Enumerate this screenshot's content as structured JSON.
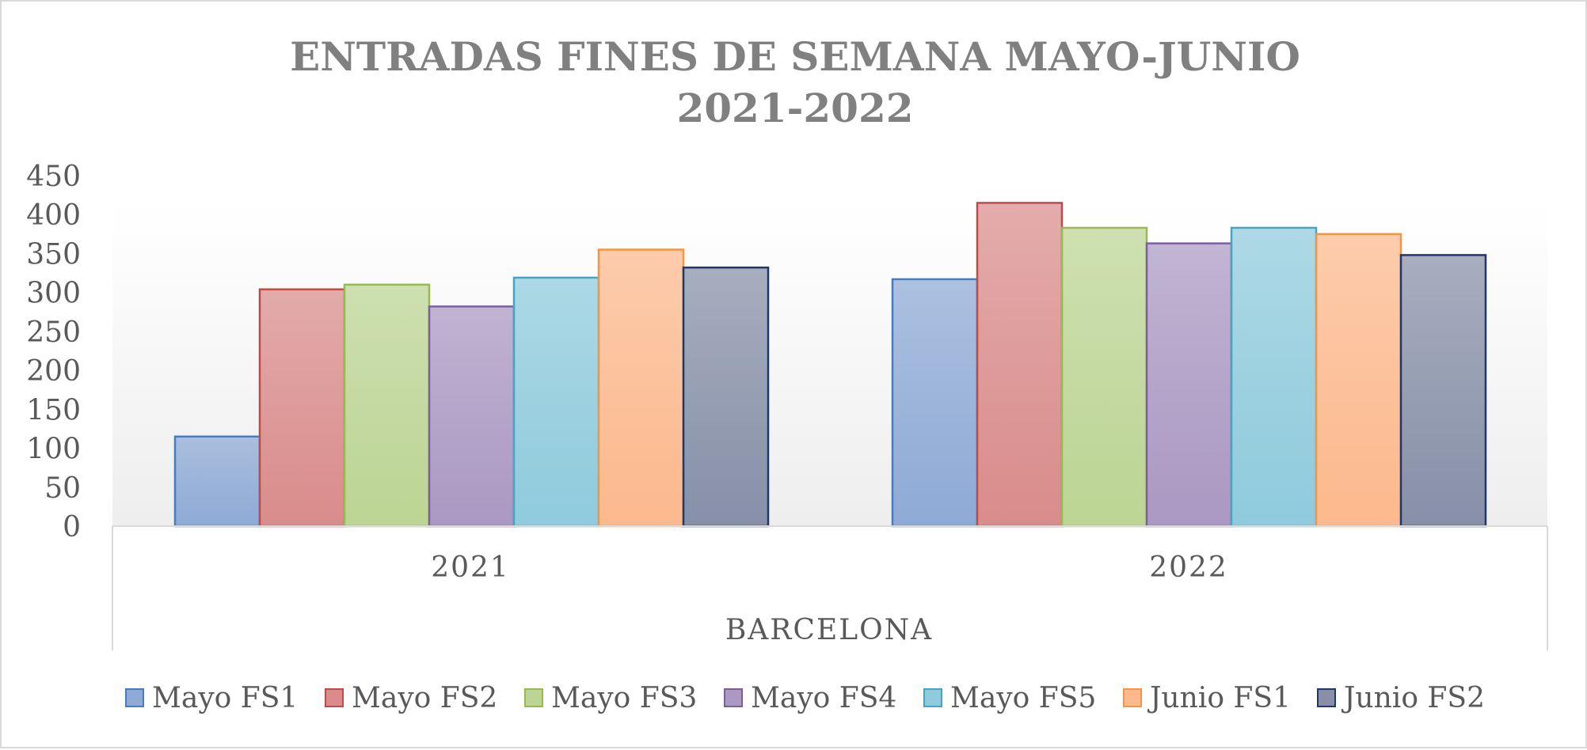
{
  "chart_data": {
    "type": "bar",
    "title_lines": [
      "ENTRADAS FINES DE SEMANA MAYO-JUNIO",
      "2021-2022"
    ],
    "categories": [
      "2021",
      "2022"
    ],
    "group_label": "BARCELONA",
    "y_ticks": [
      "0",
      "50",
      "100",
      "150",
      "200",
      "250",
      "300",
      "350",
      "400",
      "450"
    ],
    "ylim": [
      0,
      450
    ],
    "grid": false,
    "legend_position": "bottom",
    "series": [
      {
        "name": "Mayo FS1",
        "values": [
          115,
          317
        ],
        "color": "#8eaad6",
        "stroke": "#4a7bbd"
      },
      {
        "name": "Mayo FS2",
        "values": [
          304,
          415
        ],
        "color": "#da8c8c",
        "stroke": "#be4b48"
      },
      {
        "name": "Mayo FS3",
        "values": [
          310,
          383
        ],
        "color": "#bcd594",
        "stroke": "#98b954"
      },
      {
        "name": "Mayo FS4",
        "values": [
          282,
          363
        ],
        "color": "#ab98c3",
        "stroke": "#7d5fa0"
      },
      {
        "name": "Mayo FS5",
        "values": [
          319,
          383
        ],
        "color": "#8fcbdd",
        "stroke": "#46a5c1"
      },
      {
        "name": "Junio FS1",
        "values": [
          355,
          375
        ],
        "color": "#fdb98d",
        "stroke": "#f59543"
      },
      {
        "name": "Junio FS2",
        "values": [
          332,
          348
        ],
        "color": "#8790a8",
        "stroke": "#1f3864"
      }
    ]
  }
}
